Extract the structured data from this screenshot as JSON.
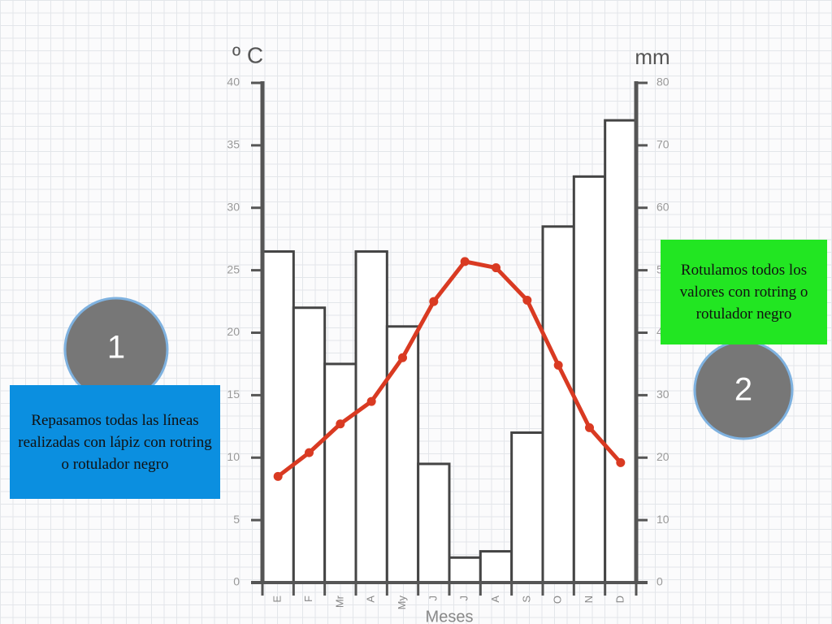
{
  "chart_data": {
    "type": "climograph",
    "y_label": "º C",
    "y2_label": "mm",
    "x_label": "Meses",
    "categories": [
      "E",
      "F",
      "Mr",
      "A",
      "My",
      "J",
      "J",
      "A",
      "S",
      "O",
      "N",
      "D"
    ],
    "series": [
      {
        "type": "bar",
        "axis": "y2",
        "color": "#ffffff",
        "values": [
          53,
          44,
          35,
          53,
          41,
          19,
          4,
          5,
          24,
          57,
          65,
          74
        ]
      },
      {
        "type": "line",
        "axis": "y",
        "color": "#d93a22",
        "values": [
          8.5,
          10.4,
          12.7,
          14.5,
          18.0,
          22.5,
          25.7,
          25.2,
          22.6,
          17.4,
          12.4,
          9.6
        ]
      }
    ],
    "ylim": [
      0,
      40
    ],
    "yticks": [
      0,
      5,
      10,
      15,
      20,
      25,
      30,
      35,
      40
    ],
    "y2lim": [
      0,
      80
    ],
    "y2ticks": [
      0,
      10,
      20,
      30,
      40,
      50,
      60,
      70,
      80
    ],
    "grid": false
  },
  "annotations": [
    "1",
    "Repasamos todas las líneas realizadas con lápiz con rotring o rotulador negro",
    "2",
    "Rotulamos todos los valores con rotring o rotulador negro"
  ]
}
